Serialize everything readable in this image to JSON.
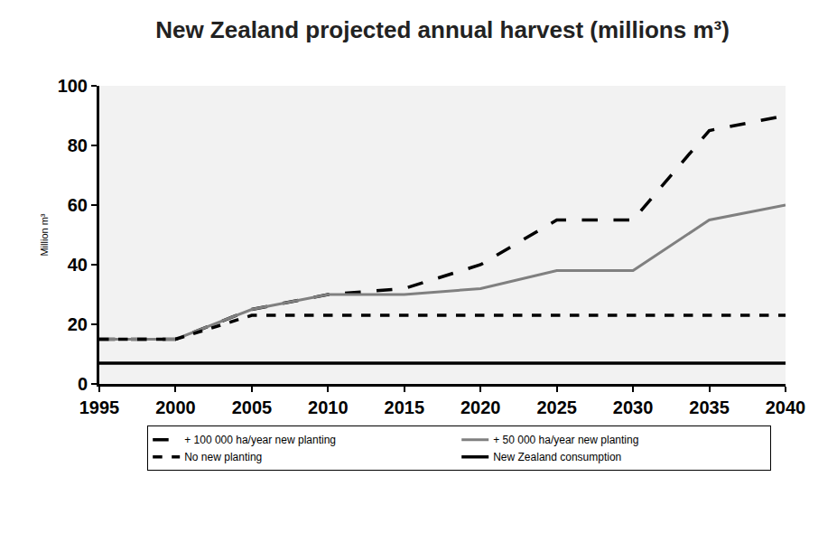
{
  "chart_data": {
    "type": "line",
    "title": "New Zealand projected annual harvest (millions m³)",
    "y_label": "Million m³",
    "x": [
      1995,
      2000,
      2005,
      2010,
      2015,
      2020,
      2025,
      2030,
      2035,
      2040
    ],
    "series": [
      {
        "name": "+ 100 000 ha/year new planting",
        "color": "#000000",
        "line_style": "longdash",
        "values": [
          15,
          15,
          25,
          30,
          32,
          40,
          55,
          55,
          85,
          90
        ]
      },
      {
        "name": "+ 50 000 ha/year new planting",
        "color": "#808080",
        "line_style": "solid",
        "values": [
          15,
          15,
          25,
          30,
          30,
          32,
          38,
          38,
          55,
          60
        ]
      },
      {
        "name": "No new planting",
        "color": "#000000",
        "line_style": "dash",
        "values": [
          15,
          15,
          23,
          23,
          23,
          23,
          23,
          23,
          23,
          23
        ]
      },
      {
        "name": "New Zealand consumption",
        "color": "#000000",
        "line_style": "solid",
        "values": [
          7,
          7,
          7,
          7,
          7,
          7,
          7,
          7,
          7,
          7
        ]
      }
    ],
    "xlim": [
      1995,
      2040
    ],
    "xticks": [
      1995,
      2000,
      2005,
      2010,
      2015,
      2020,
      2025,
      2030,
      2035,
      2040
    ],
    "ylim": [
      0,
      100
    ],
    "yticks": [
      0,
      20,
      40,
      60,
      80,
      100
    ],
    "grid": false,
    "legend": "bottom"
  }
}
